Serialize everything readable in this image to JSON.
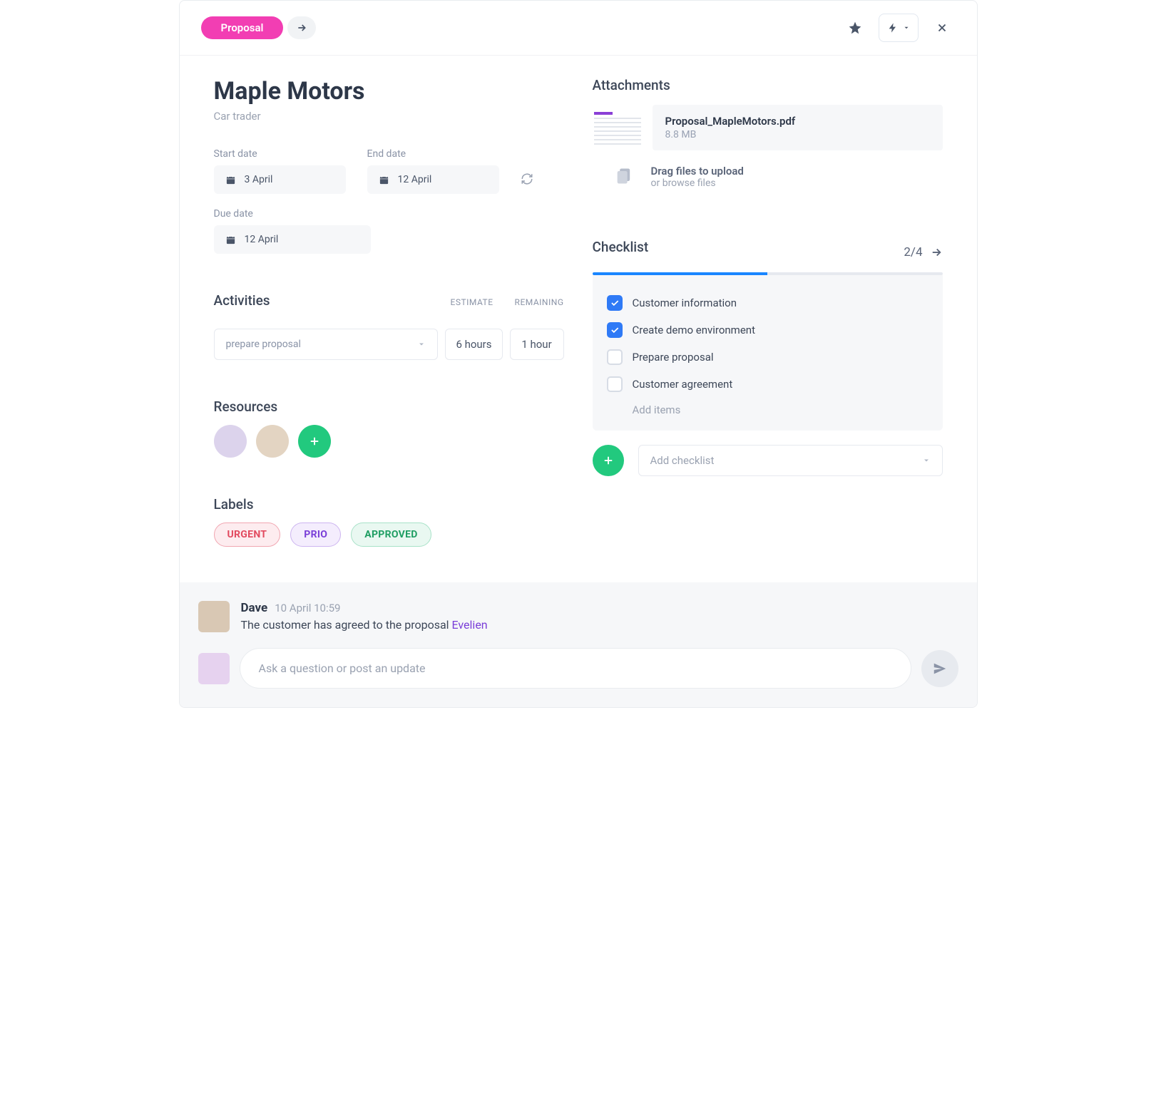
{
  "header": {
    "status_label": "Proposal",
    "status_bg": "#f23eb3"
  },
  "task": {
    "title": "Maple Motors",
    "subtitle": "Car trader"
  },
  "dates": {
    "start_label": "Start date",
    "start_value": "3 April",
    "end_label": "End date",
    "end_value": "12 April",
    "due_label": "Due date",
    "due_value": "12 April"
  },
  "activities": {
    "section_title": "Activities",
    "estimate_header": "ESTIMATE",
    "remaining_header": "REMAINING",
    "select_placeholder": "prepare proposal",
    "estimate_value": "6 hours",
    "remaining_value": "1 hour"
  },
  "resources": {
    "section_title": "Resources",
    "avatars": [
      "user-1",
      "user-2"
    ]
  },
  "labels_section": {
    "section_title": "Labels",
    "items": [
      {
        "text": "URGENT",
        "class": "tag-urgent"
      },
      {
        "text": "PRIO",
        "class": "tag-prio"
      },
      {
        "text": "APPROVED",
        "class": "tag-approved"
      }
    ]
  },
  "attachments": {
    "section_title": "Attachments",
    "file_name": "Proposal_MapleMotors.pdf",
    "file_size": "8.8 MB",
    "upload_line1": "Drag files to upload",
    "upload_line2": "or browse files"
  },
  "checklist": {
    "section_title": "Checklist",
    "count": "2/4",
    "progress_pct": 50,
    "items": [
      {
        "label": "Customer information",
        "checked": true
      },
      {
        "label": "Create demo environment",
        "checked": true
      },
      {
        "label": "Prepare proposal",
        "checked": false
      },
      {
        "label": "Customer agreement",
        "checked": false
      }
    ],
    "add_items_label": "Add items",
    "add_checklist_placeholder": "Add checklist"
  },
  "comments": {
    "author": "Dave",
    "timestamp": "10 April 10:59",
    "body_prefix": "The customer has agreed to the proposal ",
    "mention": "Evelien",
    "composer_placeholder": "Ask a question or post an update"
  },
  "colors": {
    "accent_pink": "#f23eb3",
    "accent_green": "#22c97e",
    "accent_blue": "#2f7af6",
    "progress_blue": "#1a86ff",
    "text_muted": "#9aa2b1"
  }
}
